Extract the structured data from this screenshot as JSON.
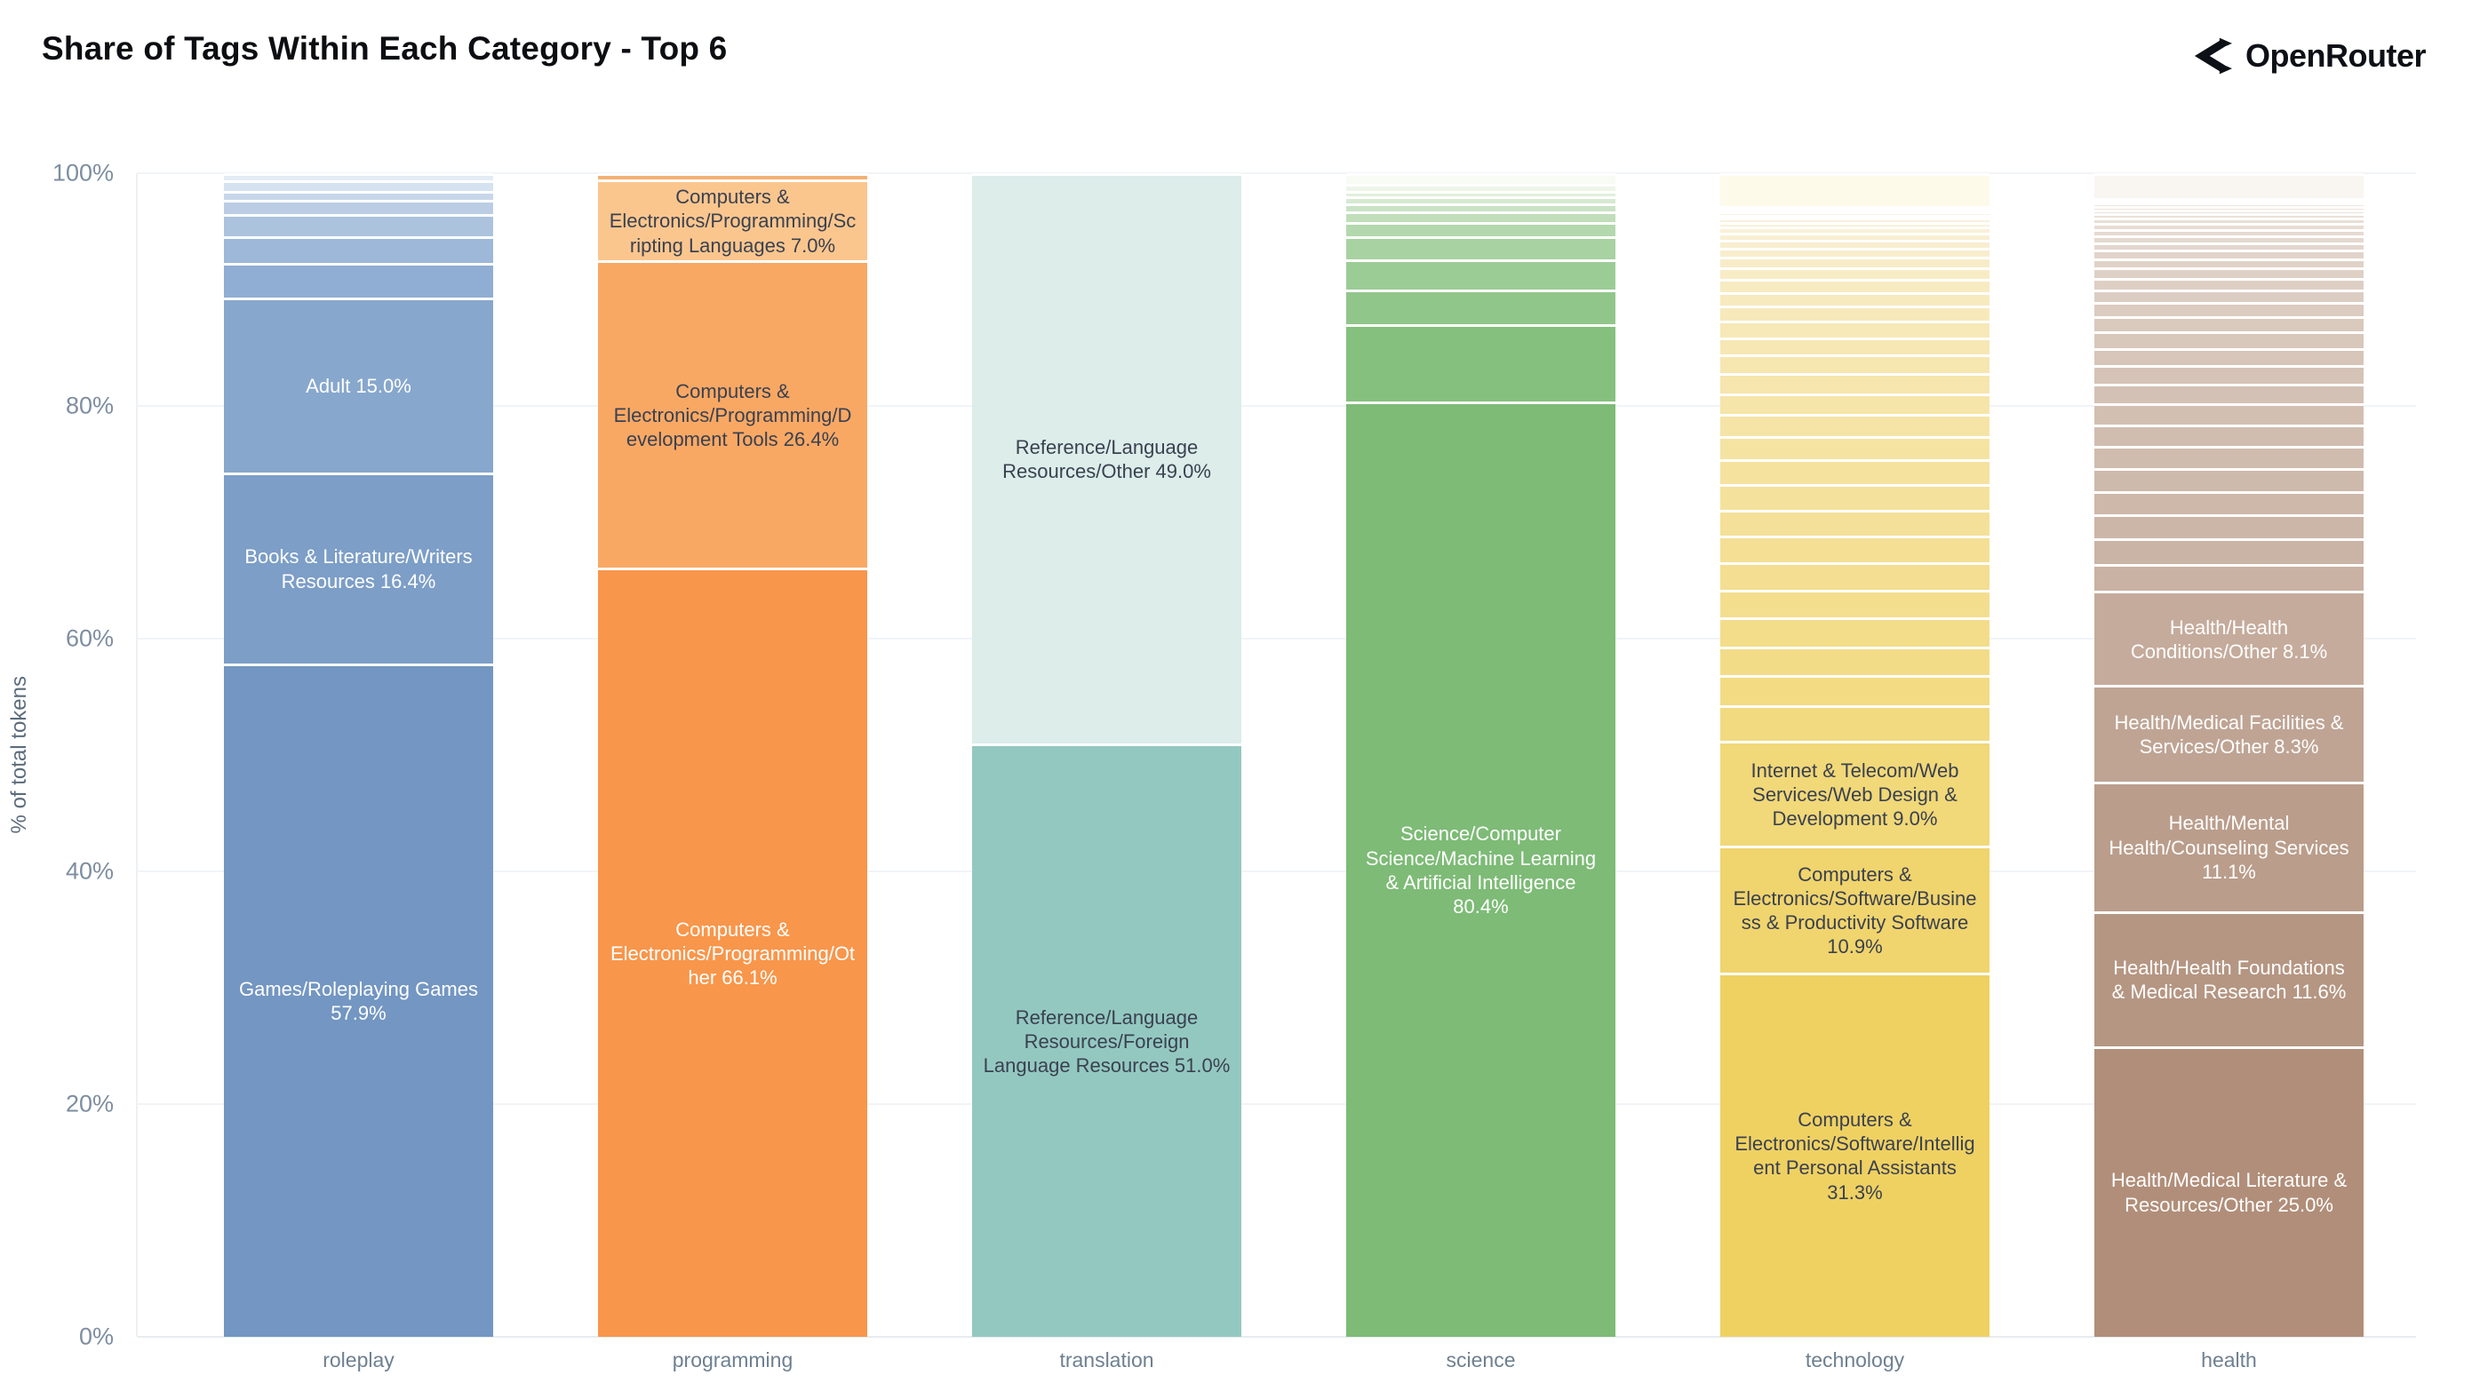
{
  "header": {
    "title": "Share of Tags Within Each Category - Top 6",
    "brand": "OpenRouter",
    "icon": "openrouter-arrow-mark",
    "title_color": "#0c0e12"
  },
  "y_axis": {
    "title": "% of total tokens"
  },
  "chart_data": {
    "type": "bar",
    "stacked": true,
    "normalized": "percent",
    "title": "Share of Tags Within Each Category - Top 6",
    "xlabel": "",
    "ylabel": "% of total tokens",
    "ylim": [
      0,
      100
    ],
    "grid": "horizontal",
    "legend": "none",
    "y_ticks": {
      "values": [
        0,
        20,
        40,
        60,
        80,
        100
      ],
      "labels": [
        "0%",
        "20%",
        "40%",
        "60%",
        "80%",
        "100%"
      ]
    },
    "categories": [
      "roleplay",
      "programming",
      "translation",
      "science",
      "technology",
      "health"
    ],
    "bars": [
      {
        "category": "roleplay",
        "base_color": "#7396c2",
        "segments": [
          {
            "label": "Games/Roleplaying Games",
            "value": 57.9,
            "display": "Games/Roleplaying Games 57.9%",
            "color": "#7396c2",
            "text": "#ffffff"
          },
          {
            "label": "Books & Literature/Writers Resources",
            "value": 16.4,
            "display": "Books & Literature/Writers Resources 16.4%",
            "color": "#7c9ec7",
            "text": "#ffffff"
          },
          {
            "label": "Adult",
            "value": 15.0,
            "display": "Adult 15.0%",
            "color": "#87a7cd",
            "text": "#ffffff"
          },
          {
            "filler_values": [
              3.0,
              2.3,
              1.9,
              1.2,
              0.8,
              0.9,
              0.6
            ],
            "color_from": "#90aed3",
            "color_to": "#e3ecf4"
          }
        ]
      },
      {
        "category": "programming",
        "base_color": "#f8964b",
        "segments": [
          {
            "label": "Computers & Electronics/Programming/Other",
            "value": 66.1,
            "display": "Computers & Electronics/Programming/Other 66.1%",
            "color": "#f8964b",
            "text": "#ffffff"
          },
          {
            "label": "Computers & Electronics/Programming/Development Tools",
            "value": 26.4,
            "display": "Computers & Electronics/Programming/Development Tools 26.4%",
            "color": "#f9a864",
            "text": "#3a4150"
          },
          {
            "label": "Computers & Electronics/Programming/Scripting Languages",
            "value": 7.0,
            "display": "Computers & Electronics/Programming/Scripting Languages 7.0%",
            "color": "#fbc68e",
            "text": "#3a4150"
          },
          {
            "filler_values": [
              0.5
            ],
            "color_from": "#f4b173",
            "color_to": "#f4b173"
          }
        ]
      },
      {
        "category": "translation",
        "base_color": "#93c8c0",
        "segments": [
          {
            "label": "Reference/Language Resources/Foreign Language Resources",
            "value": 51.0,
            "display": "Reference/Language Resources/Foreign Language Resources 51.0%",
            "color": "#93c8c0",
            "text": "#3a4150"
          },
          {
            "label": "Reference/Language Resources/Other",
            "value": 49.0,
            "display": "Reference/Language Resources/Other 49.0%",
            "color": "#dcedea",
            "text": "#3a4150"
          }
        ]
      },
      {
        "category": "science",
        "base_color": "#7dbb76",
        "segments": [
          {
            "label": "Science/Computer Science/Machine Learning & Artificial Intelligence",
            "value": 80.4,
            "display": "Science/Computer Science/Machine Learning & Artificial Intelligence 80.4%",
            "color": "#7dbb76",
            "text": "#ffffff"
          },
          {
            "filler_values": [
              6.6,
              3.0,
              2.6,
              2.0,
              1.2,
              0.9,
              0.7,
              0.6,
              0.5,
              0.6,
              0.9
            ],
            "color_from": "#85c07e",
            "color_to": "#f8fbf4"
          }
        ]
      },
      {
        "category": "technology",
        "base_color": "#efd162",
        "segments": [
          {
            "label": "Computers & Electronics/Software/Intelligent Personal Assistants",
            "value": 31.3,
            "display": "Computers & Electronics/Software/Intelligent Personal Assistants 31.3%",
            "color": "#efd162",
            "text": "#3a4150"
          },
          {
            "label": "Computers & Electronics/Software/Business & Productivity Software",
            "value": 10.9,
            "display": "Computers & Electronics/Software/Business & Productivity Software 10.9%",
            "color": "#f0d46d",
            "text": "#3a4150"
          },
          {
            "label": "Internet & Telecom/Web Services/Web Design & Development",
            "value": 9.0,
            "display": "Internet & Telecom/Web Services/Web Design & Development 9.0%",
            "color": "#f1d878",
            "text": "#3a4150"
          },
          {
            "filler_values": [
              3.1,
              2.55,
              2.5,
              2.45,
              2.4,
              2.35,
              2.3,
              2.25,
              2.2,
              2.1,
              2.0,
              1.9,
              1.8,
              1.7,
              1.6,
              1.5,
              1.4,
              1.3,
              1.2,
              1.1,
              1.0,
              0.9,
              0.8,
              0.7,
              0.6,
              0.5,
              0.4,
              0.35,
              0.3,
              0.25,
              0.2,
              0.15,
              0.1
            ],
            "color_from": "#f2da80",
            "color_to": "#fbf6ee"
          },
          {
            "value": 2.85,
            "color": "#fdfaea"
          }
        ]
      },
      {
        "category": "health",
        "base_color": "#b18e79",
        "segments": [
          {
            "label": "Health/Medical Literature & Resources/Other",
            "value": 25.0,
            "display": "Health/Medical Literature & Resources/Other 25.0%",
            "color": "#b18e79",
            "text": "#ffffff"
          },
          {
            "label": "Health/Health Foundations & Medical Research",
            "value": 11.6,
            "display": "Health/Health Foundations & Medical Research 11.6%",
            "color": "#b59683",
            "text": "#ffffff"
          },
          {
            "label": "Health/Mental Health/Counseling Services",
            "value": 11.1,
            "display": "Health/Mental Health/Counseling Services 11.1%",
            "color": "#ba9d8b",
            "text": "#ffffff"
          },
          {
            "label": "Health/Medical Facilities & Services/Other",
            "value": 8.3,
            "display": "Health/Medical Facilities & Services/Other 8.3%",
            "color": "#bfa494",
            "text": "#ffffff"
          },
          {
            "label": "Health/Health Conditions/Other",
            "value": 8.1,
            "display": "Health/Health Conditions/Other 8.1%",
            "color": "#c5ab9c",
            "text": "#ffffff"
          },
          {
            "filler_values": [
              2.3,
              2.2,
              2.1,
              2.0,
              1.95,
              1.9,
              1.85,
              1.8,
              1.7,
              1.6,
              1.5,
              1.4,
              1.3,
              1.2,
              1.1,
              1.0,
              0.9,
              0.8,
              0.7,
              0.65,
              0.6,
              0.55,
              0.5,
              0.45,
              0.4,
              0.35,
              0.3,
              0.25,
              0.2,
              0.15,
              0.1
            ],
            "color_from": "#c9b2a3",
            "color_to": "#f2ebe5"
          },
          {
            "value": 2.1,
            "color": "#f9f5f1"
          }
        ]
      }
    ]
  }
}
